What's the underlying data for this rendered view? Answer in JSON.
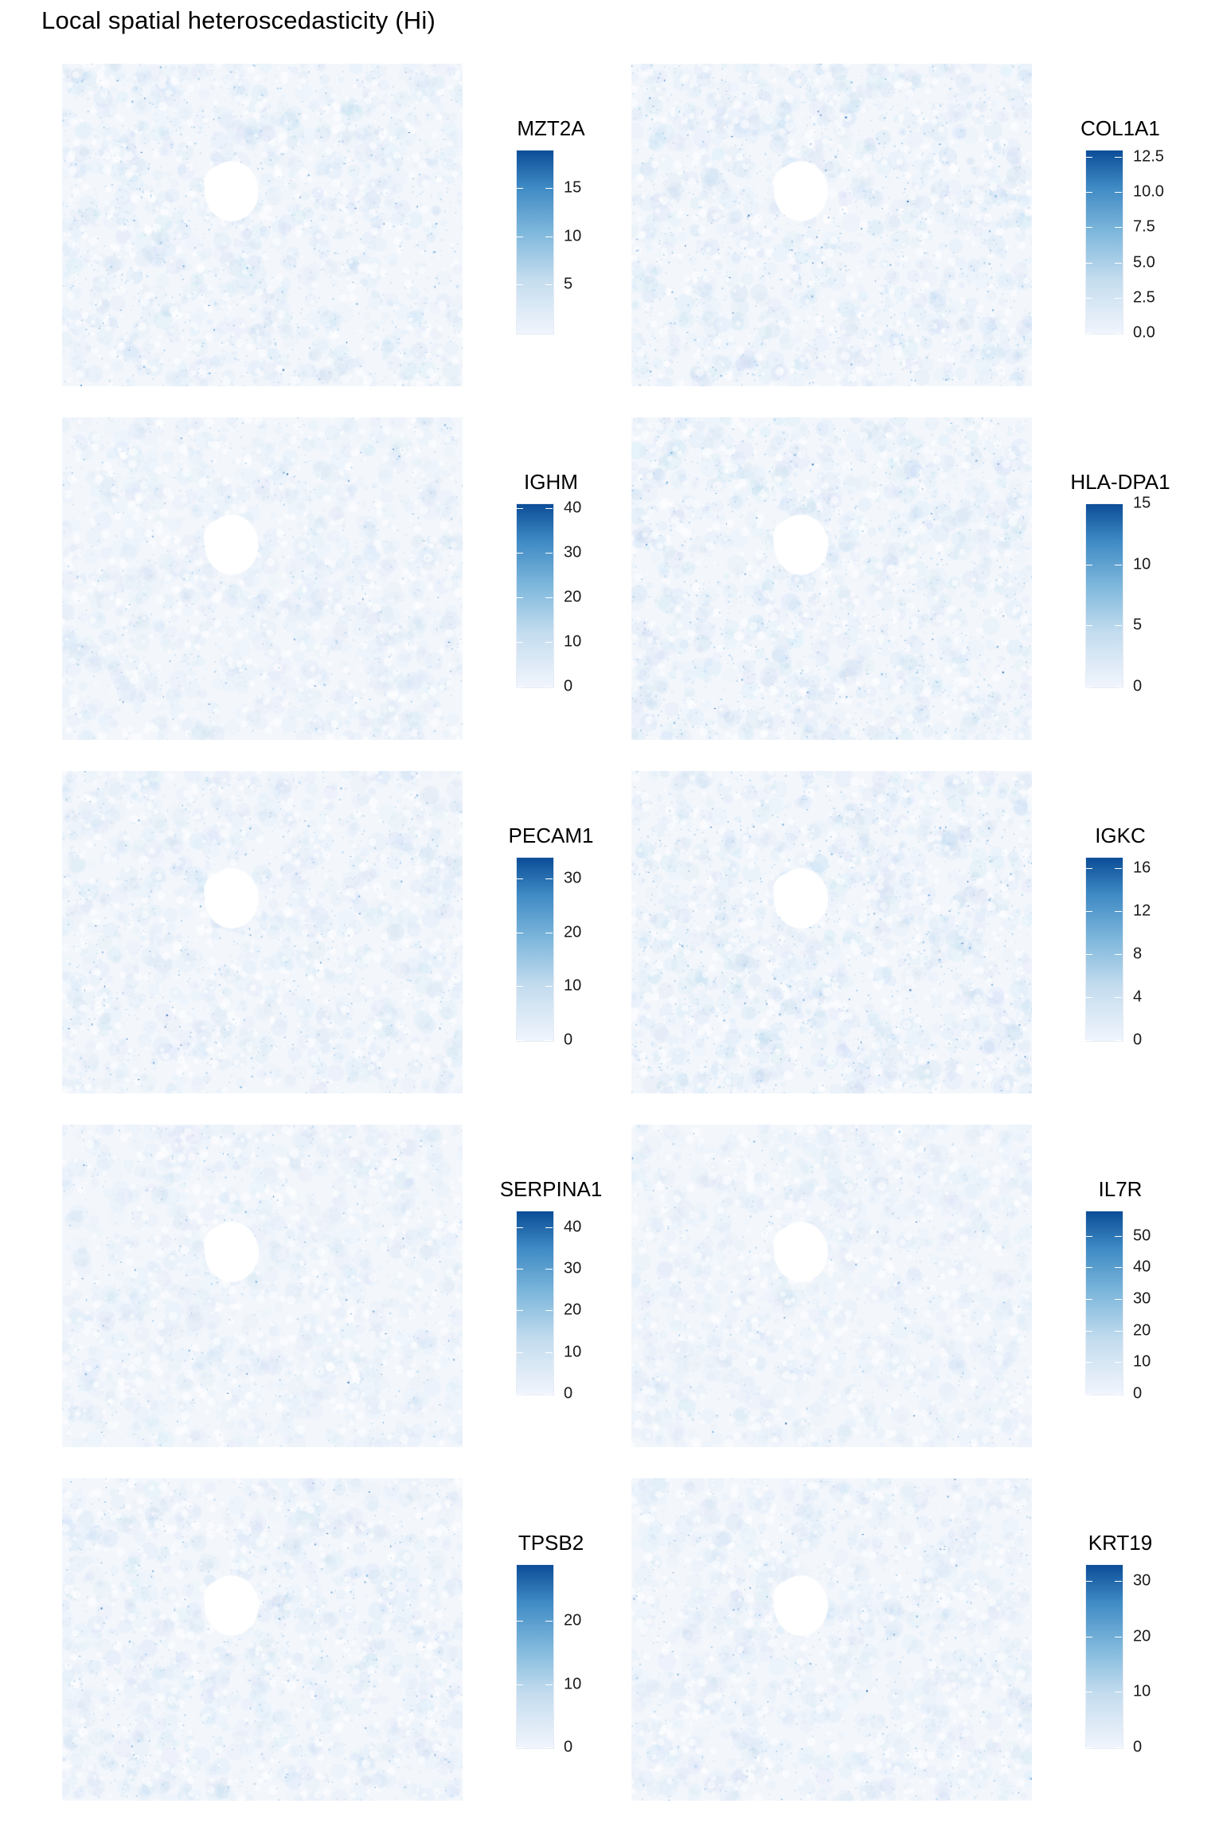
{
  "title": "Local spatial heteroscedasticity (Hi)",
  "colors": {
    "low": "#f1f5fd",
    "high": "#0c4d97",
    "mid": "#6aaad6"
  },
  "chart_data": [
    {
      "type": "heatmap",
      "legend_title": "MZT2A",
      "vmin": 0,
      "vmax": 19,
      "ticks": [
        5,
        10,
        15
      ],
      "tick_labels": [
        "5",
        "10",
        "15"
      ],
      "intensity": 0.55
    },
    {
      "type": "heatmap",
      "legend_title": "COL1A1",
      "vmin": 0,
      "vmax": 13,
      "ticks": [
        0,
        2.5,
        5,
        7.5,
        10,
        12.5
      ],
      "tick_labels": [
        "0.0",
        "2.5",
        "5.0",
        "7.5",
        "10.0",
        "12.5"
      ],
      "intensity": 0.6
    },
    {
      "type": "heatmap",
      "legend_title": "IGHM",
      "vmin": 0,
      "vmax": 41,
      "ticks": [
        0,
        10,
        20,
        30,
        40
      ],
      "tick_labels": [
        "0",
        "10",
        "20",
        "30",
        "40"
      ],
      "intensity": 0.35
    },
    {
      "type": "heatmap",
      "legend_title": "HLA-DPA1",
      "vmin": 0,
      "vmax": 15,
      "ticks": [
        0,
        5,
        10,
        15
      ],
      "tick_labels": [
        "0",
        "5",
        "10",
        "15"
      ],
      "intensity": 0.6
    },
    {
      "type": "heatmap",
      "legend_title": "PECAM1",
      "vmin": 0,
      "vmax": 34,
      "ticks": [
        0,
        10,
        20,
        30
      ],
      "tick_labels": [
        "0",
        "10",
        "20",
        "30"
      ],
      "intensity": 0.45
    },
    {
      "type": "heatmap",
      "legend_title": "IGKC",
      "vmin": 0,
      "vmax": 17,
      "ticks": [
        0,
        4,
        8,
        12,
        16
      ],
      "tick_labels": [
        "0",
        "4",
        "8",
        "12",
        "16"
      ],
      "intensity": 0.65
    },
    {
      "type": "heatmap",
      "legend_title": "SERPINA1",
      "vmin": 0,
      "vmax": 44,
      "ticks": [
        0,
        10,
        20,
        30,
        40
      ],
      "tick_labels": [
        "0",
        "10",
        "20",
        "30",
        "40"
      ],
      "intensity": 0.3
    },
    {
      "type": "heatmap",
      "legend_title": "IL7R",
      "vmin": 0,
      "vmax": 58,
      "ticks": [
        0,
        10,
        20,
        30,
        40,
        50
      ],
      "tick_labels": [
        "0",
        "10",
        "20",
        "30",
        "40",
        "50"
      ],
      "intensity": 0.25
    },
    {
      "type": "heatmap",
      "legend_title": "TPSB2",
      "vmin": 0,
      "vmax": 29,
      "ticks": [
        0,
        10,
        20
      ],
      "tick_labels": [
        "0",
        "10",
        "20"
      ],
      "intensity": 0.45
    },
    {
      "type": "heatmap",
      "legend_title": "KRT19",
      "vmin": 0,
      "vmax": 33,
      "ticks": [
        0,
        10,
        20,
        30
      ],
      "tick_labels": [
        "0",
        "10",
        "20",
        "30"
      ],
      "intensity": 0.35
    }
  ]
}
